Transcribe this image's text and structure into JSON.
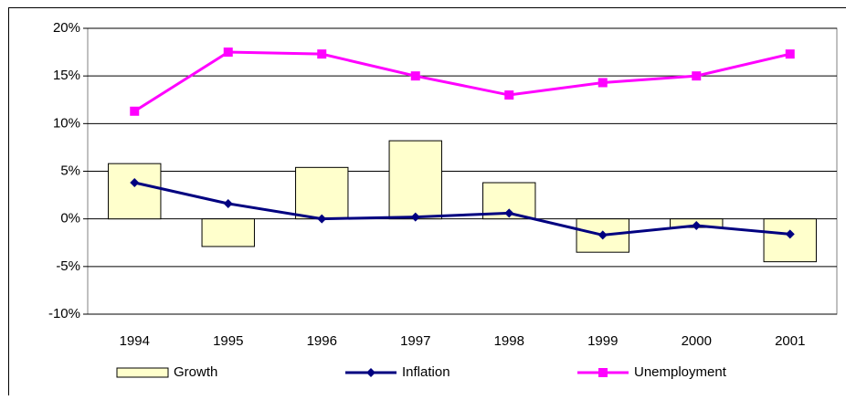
{
  "chart_data": {
    "type": "combo",
    "categories": [
      "1994",
      "1995",
      "1996",
      "1997",
      "1998",
      "1999",
      "2000",
      "2001"
    ],
    "series": [
      {
        "name": "Growth",
        "type": "bar",
        "color": "#ffffcc",
        "values": [
          5.8,
          -2.9,
          5.4,
          8.2,
          3.8,
          -3.5,
          -0.9,
          -4.5
        ]
      },
      {
        "name": "Inflation",
        "type": "line",
        "marker": "diamond",
        "color": "#000080",
        "values": [
          3.8,
          1.6,
          0,
          0.2,
          0.6,
          -1.7,
          -0.7,
          -1.6
        ]
      },
      {
        "name": "Unemployment",
        "type": "line",
        "marker": "square",
        "color": "#ff00ff",
        "values": [
          11.3,
          17.5,
          17.3,
          15.0,
          13.0,
          14.3,
          15.0,
          17.3
        ]
      }
    ],
    "ylim": [
      -10,
      20
    ],
    "yticks": [
      {
        "value": -10,
        "label": "-10%"
      },
      {
        "value": -5,
        "label": "-5%"
      },
      {
        "value": 0,
        "label": "0%"
      },
      {
        "value": 5,
        "label": "5%"
      },
      {
        "value": 10,
        "label": "10%"
      },
      {
        "value": 15,
        "label": "15%"
      },
      {
        "value": 20,
        "label": "20%"
      }
    ],
    "grid": true,
    "legend": "bottom"
  }
}
